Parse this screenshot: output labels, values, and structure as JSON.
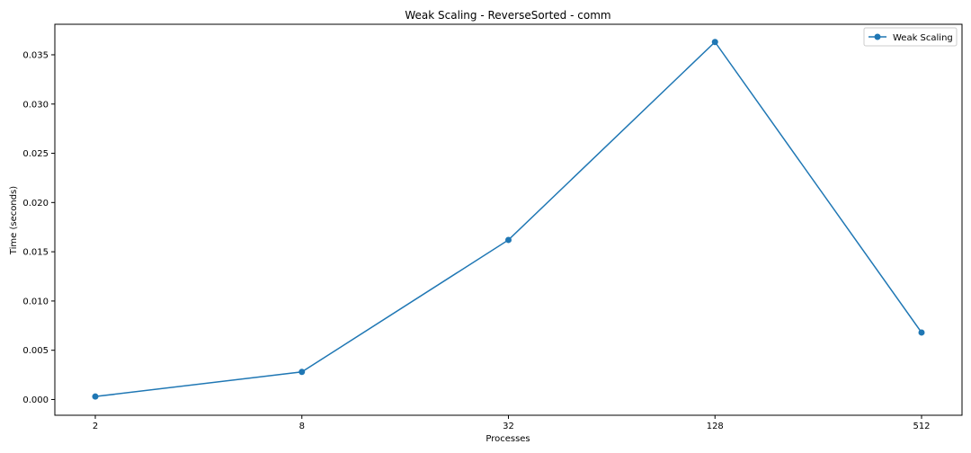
{
  "chart_data": {
    "type": "line",
    "title": "Weak Scaling - ReverseSorted - comm",
    "xlabel": "Processes",
    "ylabel": "Time (seconds)",
    "x_scale": "log2",
    "categories": [
      "2",
      "8",
      "32",
      "128",
      "512"
    ],
    "x": [
      2,
      8,
      32,
      128,
      512
    ],
    "ylim": [
      -0.0016,
      0.0381
    ],
    "y_ticks": [
      "0.000",
      "0.005",
      "0.010",
      "0.015",
      "0.020",
      "0.025",
      "0.030",
      "0.035"
    ],
    "y_tick_values": [
      0,
      0.005,
      0.01,
      0.015,
      0.02,
      0.025,
      0.03,
      0.035
    ],
    "series": [
      {
        "name": "Weak Scaling",
        "color": "#1f77b4",
        "marker": "circle",
        "values": [
          0.0003,
          0.0028,
          0.0162,
          0.0363,
          0.0068
        ]
      }
    ],
    "legend_position": "top-right",
    "grid": false
  }
}
